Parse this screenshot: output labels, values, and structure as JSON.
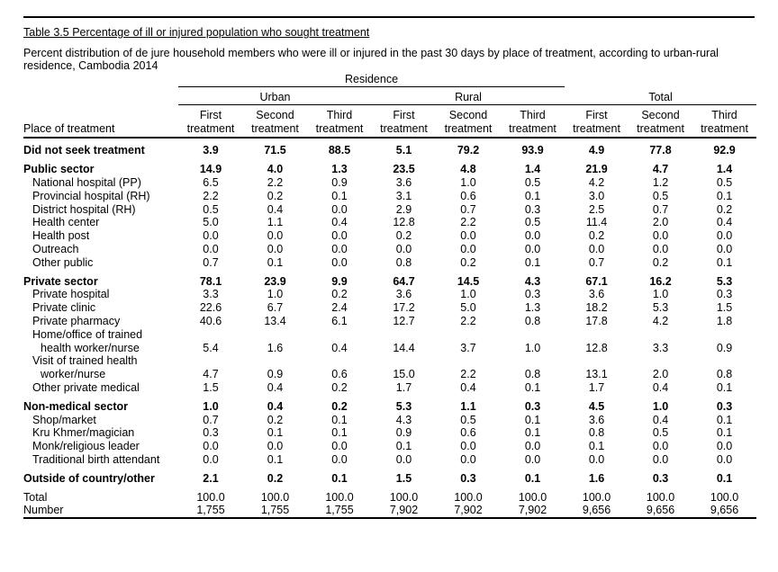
{
  "title": "Table 3.5  Percentage of ill or injured population who sought treatment",
  "subtitle": "Percent distribution of de jure household members who were ill or injured in the past 30 days by place of treatment, according to urban-rural residence, Cambodia 2014",
  "headers": {
    "residence": "Residence",
    "urban": "Urban",
    "rural": "Rural",
    "total": "Total",
    "place": "Place of treatment",
    "first_l1": "First",
    "first_l2": "treatment",
    "second_l1": "Second",
    "second_l2": "treatment",
    "third_l1": "Third",
    "third_l2": "treatment"
  },
  "rows": [
    {
      "label": "Did not seek treatment",
      "v": [
        "3.9",
        "71.5",
        "88.5",
        "5.1",
        "79.2",
        "93.9",
        "4.9",
        "77.8",
        "92.9"
      ]
    },
    {
      "label": "Public sector",
      "v": [
        "14.9",
        "4.0",
        "1.3",
        "23.5",
        "4.8",
        "1.4",
        "21.9",
        "4.7",
        "1.4"
      ]
    },
    {
      "label": "National hospital (PP)",
      "v": [
        "6.5",
        "2.2",
        "0.9",
        "3.6",
        "1.0",
        "0.5",
        "4.2",
        "1.2",
        "0.5"
      ]
    },
    {
      "label": "Provincial hospital (RH)",
      "v": [
        "2.2",
        "0.2",
        "0.1",
        "3.1",
        "0.6",
        "0.1",
        "3.0",
        "0.5",
        "0.1"
      ]
    },
    {
      "label": "District hospital (RH)",
      "v": [
        "0.5",
        "0.4",
        "0.0",
        "2.9",
        "0.7",
        "0.3",
        "2.5",
        "0.7",
        "0.2"
      ]
    },
    {
      "label": "Health center",
      "v": [
        "5.0",
        "1.1",
        "0.4",
        "12.8",
        "2.2",
        "0.5",
        "11.4",
        "2.0",
        "0.4"
      ]
    },
    {
      "label": "Health post",
      "v": [
        "0.0",
        "0.0",
        "0.0",
        "0.2",
        "0.0",
        "0.0",
        "0.2",
        "0.0",
        "0.0"
      ]
    },
    {
      "label": "Outreach",
      "v": [
        "0.0",
        "0.0",
        "0.0",
        "0.0",
        "0.0",
        "0.0",
        "0.0",
        "0.0",
        "0.0"
      ]
    },
    {
      "label": "Other public",
      "v": [
        "0.7",
        "0.1",
        "0.0",
        "0.8",
        "0.2",
        "0.1",
        "0.7",
        "0.2",
        "0.1"
      ]
    },
    {
      "label": "Private sector",
      "v": [
        "78.1",
        "23.9",
        "9.9",
        "64.7",
        "14.5",
        "4.3",
        "67.1",
        "16.2",
        "5.3"
      ]
    },
    {
      "label": "Private hospital",
      "v": [
        "3.3",
        "1.0",
        "0.2",
        "3.6",
        "1.0",
        "0.3",
        "3.6",
        "1.0",
        "0.3"
      ]
    },
    {
      "label": "Private clinic",
      "v": [
        "22.6",
        "6.7",
        "2.4",
        "17.2",
        "5.0",
        "1.3",
        "18.2",
        "5.3",
        "1.5"
      ]
    },
    {
      "label": "Private pharmacy",
      "v": [
        "40.6",
        "13.4",
        "6.1",
        "12.7",
        "2.2",
        "0.8",
        "17.8",
        "4.2",
        "1.8"
      ]
    },
    {
      "label1": "Home/office of trained",
      "label2": "health worker/nurse",
      "v": [
        "5.4",
        "1.6",
        "0.4",
        "14.4",
        "3.7",
        "1.0",
        "12.8",
        "3.3",
        "0.9"
      ]
    },
    {
      "label1": "Visit of trained health",
      "label2": "worker/nurse",
      "v": [
        "4.7",
        "0.9",
        "0.6",
        "15.0",
        "2.2",
        "0.8",
        "13.1",
        "2.0",
        "0.8"
      ]
    },
    {
      "label": "Other private medical",
      "v": [
        "1.5",
        "0.4",
        "0.2",
        "1.7",
        "0.4",
        "0.1",
        "1.7",
        "0.4",
        "0.1"
      ]
    },
    {
      "label": "Non-medical sector",
      "v": [
        "1.0",
        "0.4",
        "0.2",
        "5.3",
        "1.1",
        "0.3",
        "4.5",
        "1.0",
        "0.3"
      ]
    },
    {
      "label": "Shop/market",
      "v": [
        "0.7",
        "0.2",
        "0.1",
        "4.3",
        "0.5",
        "0.1",
        "3.6",
        "0.4",
        "0.1"
      ]
    },
    {
      "label": "Kru Khmer/magician",
      "v": [
        "0.3",
        "0.1",
        "0.1",
        "0.9",
        "0.6",
        "0.1",
        "0.8",
        "0.5",
        "0.1"
      ]
    },
    {
      "label": "Monk/religious leader",
      "v": [
        "0.0",
        "0.0",
        "0.0",
        "0.1",
        "0.0",
        "0.0",
        "0.1",
        "0.0",
        "0.0"
      ]
    },
    {
      "label": "Traditional birth attendant",
      "v": [
        "0.0",
        "0.1",
        "0.0",
        "0.0",
        "0.0",
        "0.0",
        "0.0",
        "0.0",
        "0.0"
      ]
    },
    {
      "label": "Outside of country/other",
      "v": [
        "2.1",
        "0.2",
        "0.1",
        "1.5",
        "0.3",
        "0.1",
        "1.6",
        "0.3",
        "0.1"
      ]
    },
    {
      "label": "Total",
      "v": [
        "100.0",
        "100.0",
        "100.0",
        "100.0",
        "100.0",
        "100.0",
        "100.0",
        "100.0",
        "100.0"
      ]
    },
    {
      "label": "Number",
      "v": [
        "1,755",
        "1,755",
        "1,755",
        "7,902",
        "7,902",
        "7,902",
        "9,656",
        "9,656",
        "9,656"
      ]
    }
  ]
}
